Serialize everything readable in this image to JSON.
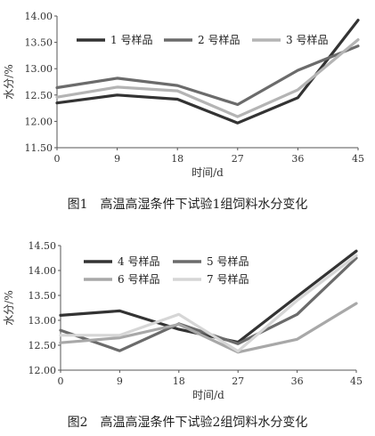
{
  "chart_data": [
    {
      "type": "line",
      "title": "",
      "caption": "图1　高温高湿条件下试验1组饲料水分变化",
      "xlabel": "时间/d",
      "ylabel": "水分/%",
      "x": [
        0,
        9,
        18,
        27,
        36,
        45
      ],
      "x_ticks": [
        "0",
        "9",
        "18",
        "27",
        "36",
        "45"
      ],
      "y_ticks": [
        "11.50",
        "12.00",
        "12.50",
        "13.00",
        "13.50",
        "14.00"
      ],
      "ylim": [
        11.5,
        14.0
      ],
      "grid": false,
      "legend_position": "top",
      "series": [
        {
          "name": "1 号样品",
          "color": "#333333",
          "values": [
            12.35,
            12.5,
            12.42,
            11.97,
            12.45,
            13.92
          ]
        },
        {
          "name": "2 号样品",
          "color": "#6b6b6b",
          "values": [
            12.64,
            12.82,
            12.68,
            12.32,
            12.97,
            13.43
          ]
        },
        {
          "name": "3 号样品",
          "color": "#b4b4b4",
          "values": [
            12.46,
            12.65,
            12.58,
            12.09,
            12.6,
            13.55
          ]
        }
      ]
    },
    {
      "type": "line",
      "title": "",
      "caption": "图2　高温高湿条件下试验2组饲料水分变化",
      "xlabel": "时间/d",
      "ylabel": "水分/%",
      "x": [
        0,
        9,
        18,
        27,
        36,
        45
      ],
      "x_ticks": [
        "0",
        "9",
        "18",
        "27",
        "36",
        "45"
      ],
      "y_ticks": [
        "12.00",
        "12.50",
        "13.00",
        "13.50",
        "14.00",
        "14.50"
      ],
      "ylim": [
        12.0,
        14.5
      ],
      "grid": false,
      "legend_position": "top",
      "series": [
        {
          "name": "4 号样品",
          "color": "#333333",
          "values": [
            13.1,
            13.19,
            12.82,
            12.56,
            13.48,
            14.39
          ]
        },
        {
          "name": "5 号样品",
          "color": "#6b6b6b",
          "values": [
            12.8,
            12.39,
            12.93,
            12.53,
            13.12,
            14.25
          ]
        },
        {
          "name": "6 号样品",
          "color": "#a8a8a8",
          "values": [
            12.55,
            12.65,
            12.92,
            12.36,
            12.62,
            13.34
          ]
        },
        {
          "name": "7 号样品",
          "color": "#d6d6d6",
          "values": [
            12.7,
            12.7,
            13.12,
            12.38,
            13.4,
            14.3
          ]
        }
      ]
    }
  ]
}
